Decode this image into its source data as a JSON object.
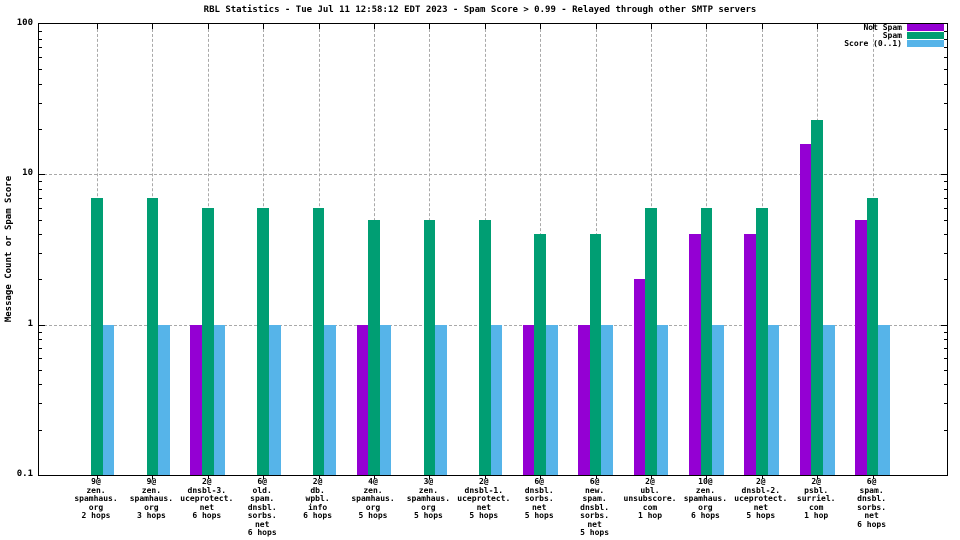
{
  "window": {
    "background_color": "#ffffff",
    "axis_color": "#000000",
    "grid_color": "#a9a9a9"
  },
  "chart_data": {
    "type": "bar",
    "title": "RBL Statistics - Tue Jul 11 12:58:12 EDT 2023 - Spam Score > 0.99 - Relayed through other SMTP servers",
    "ylabel": "Message Count or Spam Score",
    "xlabel": "",
    "y_scale": "log",
    "ylim": [
      0.1,
      100
    ],
    "ytick_labels": [
      "100",
      "10",
      "1",
      "0.1"
    ],
    "ytick_values": [
      100,
      10,
      1,
      0.1
    ],
    "grid_y_values": [
      10,
      1
    ],
    "grid": "on",
    "legend_position": "top-right-inside",
    "categories": [
      [
        "9@",
        "zen.",
        "spamhaus.",
        "org",
        "2 hops"
      ],
      [
        "9@",
        "zen.",
        "spamhaus.",
        "org",
        "3 hops"
      ],
      [
        "2@",
        "dnsbl-3.",
        "uceprotect.",
        "net",
        "6 hops"
      ],
      [
        "6@",
        "old.",
        "spam.",
        "dnsbl.",
        "sorbs.",
        "net",
        "6 hops"
      ],
      [
        "2@",
        "db.",
        "wpbl.",
        "info",
        "6 hops"
      ],
      [
        "4@",
        "zen.",
        "spamhaus.",
        "org",
        "5 hops"
      ],
      [
        "3@",
        "zen.",
        "spamhaus.",
        "org",
        "5 hops"
      ],
      [
        "2@",
        "dnsbl-1.",
        "uceprotect.",
        "net",
        "5 hops"
      ],
      [
        "6@",
        "dnsbl.",
        "sorbs.",
        "net",
        "5 hops"
      ],
      [
        "6@",
        "new.",
        "spam.",
        "dnsbl.",
        "sorbs.",
        "net",
        "5 hops"
      ],
      [
        "2@",
        "ubl.",
        "unsubscore.",
        "com",
        "1 hop"
      ],
      [
        "10@",
        "zen.",
        "spamhaus.",
        "org",
        "6 hops"
      ],
      [
        "2@",
        "dnsbl-2.",
        "uceprotect.",
        "net",
        "5 hops"
      ],
      [
        "2@",
        "psbl.",
        "surriel.",
        "com",
        "1 hop"
      ],
      [
        "6@",
        "spam.",
        "dnsbl.",
        "sorbs.",
        "net",
        "6 hops"
      ]
    ],
    "series": [
      {
        "name": "Not Spam",
        "color": "#9400d3",
        "values": [
          null,
          null,
          1,
          null,
          null,
          1,
          null,
          null,
          1,
          1,
          2,
          4,
          4,
          16,
          5
        ]
      },
      {
        "name": "Spam",
        "color": "#009e73",
        "values": [
          7,
          7,
          6,
          6,
          6,
          5,
          5,
          5,
          4,
          4,
          6,
          6,
          6,
          23,
          7
        ]
      },
      {
        "name": "Score (0..1)",
        "color": "#56b4e9",
        "values": [
          1,
          1,
          1,
          1,
          1,
          1,
          1,
          1,
          1,
          1,
          1,
          1,
          1,
          1,
          1
        ]
      }
    ]
  }
}
